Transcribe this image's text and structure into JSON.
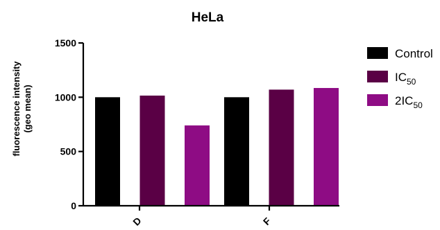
{
  "chart_data": {
    "type": "bar",
    "title": "HeLa",
    "ylabel": [
      "fluorescence intensity",
      "(geo mean)"
    ],
    "xlabel": "",
    "ylim": [
      0,
      1500
    ],
    "yticks": [
      0,
      500,
      1000,
      1500
    ],
    "categories": [
      "D",
      "F"
    ],
    "series": [
      {
        "name": "Control",
        "legend_main": "Control",
        "legend_sub": "",
        "color": "#000000",
        "values": [
          1000,
          1000
        ]
      },
      {
        "name": "IC50",
        "legend_main": "IC",
        "legend_sub": "50",
        "color": "#5a0045",
        "values": [
          1015,
          1070
        ]
      },
      {
        "name": "2IC50",
        "legend_main": "2IC",
        "legend_sub": "50",
        "color": "#8e0c84",
        "values": [
          740,
          1085
        ]
      }
    ],
    "grid": false,
    "legend_position": "right"
  }
}
